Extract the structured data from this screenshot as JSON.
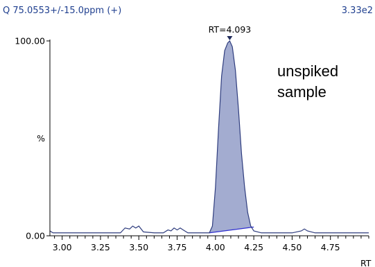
{
  "header": {
    "left": "Q 75.0553+/-15.0ppm (+)",
    "right": "3.33e2"
  },
  "chart_data": {
    "type": "line",
    "title": "",
    "xlabel": "RT",
    "ylabel": "%",
    "xlim": [
      2.92,
      5.0
    ],
    "ylim": [
      0,
      100
    ],
    "x_ticks": [
      "3.00",
      "3.25",
      "3.50",
      "3.75",
      "4.00",
      "4.25",
      "4.50",
      "4.75"
    ],
    "x_tick_values": [
      3.0,
      3.25,
      3.5,
      3.75,
      4.0,
      4.25,
      4.5,
      4.75
    ],
    "y_ticks": [
      {
        "label": "0.00",
        "value": 0
      },
      {
        "label": "%",
        "value": 50
      },
      {
        "label": "100.00",
        "value": 100
      }
    ],
    "series": [
      {
        "color": "#2f3d7e",
        "fill": "#a3acd0",
        "x": [
          2.92,
          2.94,
          3.0,
          3.1,
          3.2,
          3.3,
          3.38,
          3.41,
          3.44,
          3.46,
          3.48,
          3.5,
          3.53,
          3.6,
          3.66,
          3.69,
          3.71,
          3.73,
          3.75,
          3.77,
          3.79,
          3.82,
          3.9,
          3.96,
          3.98,
          4.0,
          4.02,
          4.04,
          4.06,
          4.08,
          4.093,
          4.11,
          4.13,
          4.15,
          4.17,
          4.19,
          4.21,
          4.23,
          4.25,
          4.3,
          4.4,
          4.5,
          4.56,
          4.58,
          4.6,
          4.65,
          4.75,
          4.85,
          5.0
        ],
        "y": [
          2.5,
          1.5,
          1.5,
          1.5,
          1.5,
          1.5,
          1.5,
          4.0,
          3.5,
          5.0,
          4.0,
          5.0,
          2.0,
          1.5,
          1.5,
          3.0,
          2.5,
          4.0,
          3.0,
          4.0,
          3.0,
          1.5,
          1.5,
          1.5,
          5.0,
          25.0,
          55.0,
          82.0,
          95.0,
          99.0,
          100.0,
          97.0,
          85.0,
          65.0,
          42.0,
          25.0,
          12.0,
          5.0,
          2.5,
          1.5,
          1.5,
          1.5,
          2.5,
          3.5,
          2.5,
          1.5,
          1.5,
          1.5,
          1.5
        ]
      }
    ],
    "peak": {
      "x": 4.093,
      "label": "RT=4.093",
      "integration_start": [
        3.96,
        1.5
      ],
      "integration_end": [
        4.25,
        4.5
      ]
    },
    "annotations": [
      "unspiked",
      "sample"
    ],
    "grid": false
  }
}
